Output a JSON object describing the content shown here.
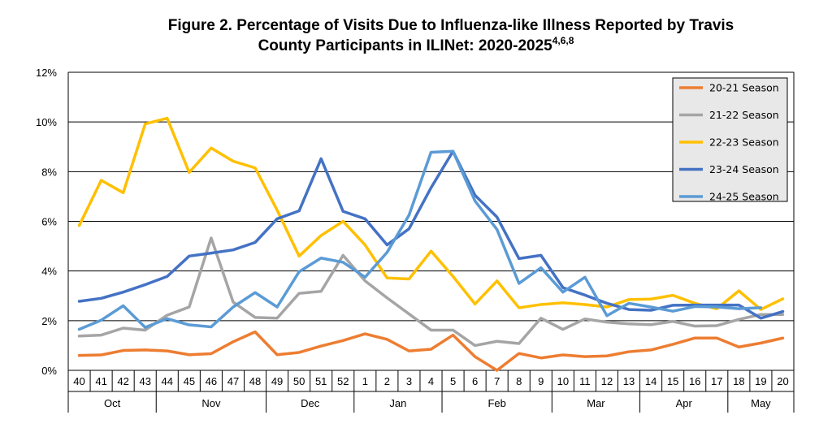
{
  "chart_data": {
    "type": "line",
    "title_line1": "Figure 2.  Percentage of Visits Due to Influenza-like Illness Reported by Travis",
    "title_line2": "County Participants in ILINet: 2020-2025",
    "title_superscript": "4,6,8",
    "xlabel": "",
    "ylabel": "",
    "ylim": [
      0,
      12
    ],
    "yticks": [
      "0%",
      "2%",
      "4%",
      "6%",
      "8%",
      "10%",
      "12%"
    ],
    "grid": true,
    "legend_position": "top-right",
    "categories": [
      "40",
      "41",
      "42",
      "43",
      "44",
      "45",
      "46",
      "47",
      "48",
      "49",
      "50",
      "51",
      "52",
      "1",
      "2",
      "3",
      "4",
      "5",
      "6",
      "7",
      "8",
      "9",
      "10",
      "11",
      "12",
      "13",
      "14",
      "15",
      "16",
      "17",
      "18",
      "19",
      "20"
    ],
    "months": [
      {
        "label": "Oct",
        "start": 0,
        "end": 3
      },
      {
        "label": "Nov",
        "start": 4,
        "end": 8
      },
      {
        "label": "Dec",
        "start": 9,
        "end": 12
      },
      {
        "label": "Jan",
        "start": 13,
        "end": 16
      },
      {
        "label": "Feb",
        "start": 17,
        "end": 21
      },
      {
        "label": "Mar",
        "start": 22,
        "end": 25
      },
      {
        "label": "Apr",
        "start": 26,
        "end": 29
      },
      {
        "label": "May",
        "start": 30,
        "end": 32
      }
    ],
    "series": [
      {
        "name": "20-21 Season",
        "color": "#ED7D31",
        "values": [
          0.6,
          0.62,
          0.8,
          0.82,
          0.78,
          0.63,
          0.67,
          1.15,
          1.55,
          0.63,
          0.72,
          0.98,
          1.2,
          1.47,
          1.25,
          0.78,
          0.85,
          1.42,
          0.55,
          0.0,
          0.68,
          0.5,
          0.62,
          0.55,
          0.58,
          0.75,
          0.82,
          1.05,
          1.3,
          1.3,
          0.94,
          1.1,
          1.3
        ]
      },
      {
        "name": "21-22 Season",
        "color": "#A5A5A5",
        "values": [
          1.38,
          1.42,
          1.7,
          1.62,
          2.22,
          2.55,
          5.33,
          2.75,
          2.13,
          2.1,
          3.1,
          3.18,
          4.63,
          3.6,
          2.92,
          2.27,
          1.62,
          1.62,
          1.0,
          1.17,
          1.08,
          2.1,
          1.65,
          2.07,
          1.94,
          1.87,
          1.84,
          1.97,
          1.78,
          1.8,
          2.05,
          2.25,
          2.25
        ]
      },
      {
        "name": "22-23 Season",
        "color": "#FFC000",
        "values": [
          5.83,
          7.65,
          7.15,
          9.92,
          10.15,
          7.97,
          8.95,
          8.42,
          8.15,
          6.45,
          4.6,
          5.43,
          6.0,
          5.05,
          3.72,
          3.68,
          4.8,
          3.78,
          2.67,
          3.6,
          2.52,
          2.65,
          2.72,
          2.65,
          2.55,
          2.85,
          2.87,
          3.02,
          2.7,
          2.48,
          3.2,
          2.45,
          2.88
        ]
      },
      {
        "name": "23-24 Season",
        "color": "#4472C4",
        "values": [
          2.78,
          2.9,
          3.15,
          3.45,
          3.78,
          4.6,
          4.72,
          4.85,
          5.15,
          6.1,
          6.42,
          8.52,
          6.4,
          6.1,
          5.05,
          5.7,
          7.35,
          8.82,
          7.05,
          6.17,
          4.5,
          4.63,
          3.33,
          3.03,
          2.7,
          2.45,
          2.42,
          2.62,
          2.63,
          2.63,
          2.63,
          2.1,
          2.37
        ]
      },
      {
        "name": "24-25 Season",
        "color": "#5B9BD5",
        "values": [
          1.65,
          2.02,
          2.6,
          1.73,
          2.08,
          1.83,
          1.75,
          2.55,
          3.13,
          2.55,
          3.97,
          4.52,
          4.35,
          3.75,
          4.75,
          6.25,
          8.78,
          8.82,
          6.82,
          5.67,
          3.5,
          4.13,
          3.15,
          3.75,
          2.2,
          2.7,
          2.55,
          2.38,
          2.57,
          2.55,
          2.48,
          2.52,
          null
        ]
      }
    ]
  }
}
